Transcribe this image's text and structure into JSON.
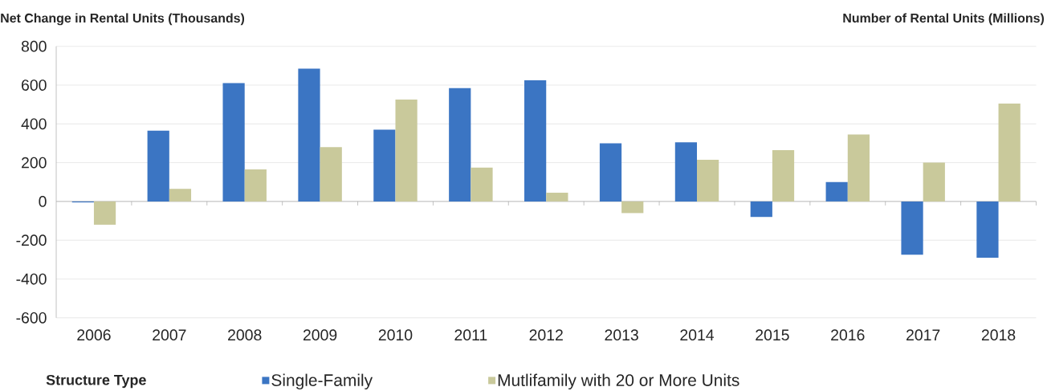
{
  "chart_data": {
    "type": "bar",
    "ylabel": "Net Change in Rental Units (Thousands)",
    "y2label": "Number of Rental Units (Millions)",
    "legend_title": "Structure Type",
    "categories": [
      "2006",
      "2007",
      "2008",
      "2009",
      "2010",
      "2011",
      "2012",
      "2013",
      "2014",
      "2015",
      "2016",
      "2017",
      "2018"
    ],
    "series": [
      {
        "name": "Single-Family",
        "color": "#3b75c3",
        "values": [
          -5,
          365,
          610,
          685,
          370,
          585,
          625,
          300,
          305,
          -80,
          100,
          -275,
          -290
        ]
      },
      {
        "name": "Mutlifamily with 20 or More Units",
        "color": "#c9c99b",
        "values": [
          -120,
          65,
          165,
          280,
          525,
          175,
          45,
          -60,
          215,
          265,
          345,
          200,
          505
        ]
      }
    ],
    "ylim": [
      -600,
      800
    ],
    "yticks": [
      -600,
      -400,
      -200,
      0,
      200,
      400,
      600,
      800
    ],
    "grid": "y",
    "legend": "bottom"
  }
}
